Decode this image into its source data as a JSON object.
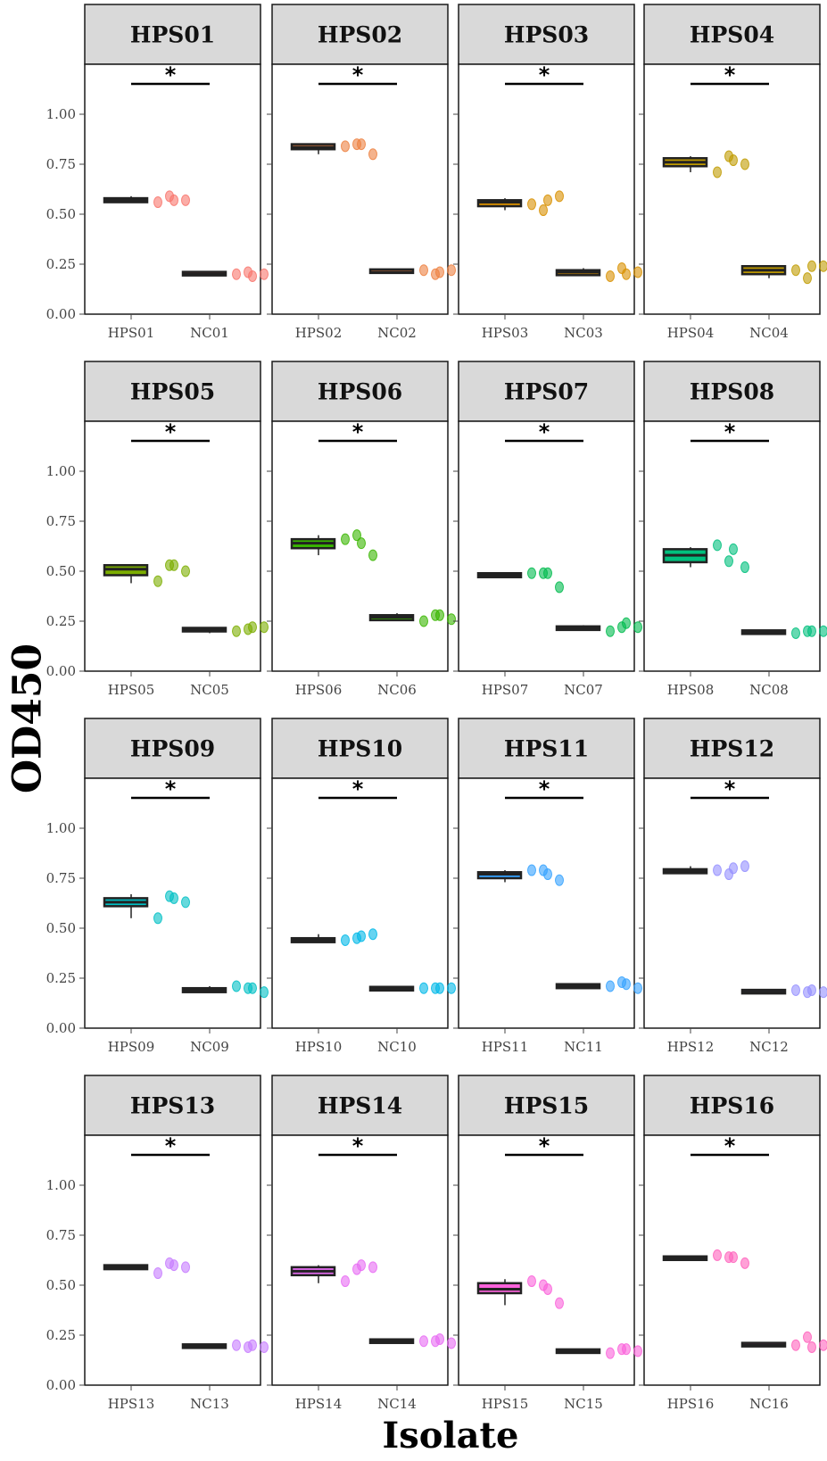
{
  "chart_data": {
    "type": "box",
    "xlabel": "Isolate",
    "ylabel": "OD450",
    "ylim": [
      0,
      1.25
    ],
    "y_ticks": [
      "0.00",
      "0.25",
      "0.50",
      "0.75",
      "1.00"
    ],
    "significance_label": "*",
    "layout": "4x4 facets",
    "panels": [
      {
        "title": "HPS01",
        "color": "#F8766D",
        "groups": [
          {
            "label": "HPS01",
            "median": 0.57,
            "q1": 0.56,
            "q3": 0.58,
            "min": 0.56,
            "max": 0.59,
            "points": [
              0.56,
              0.59,
              0.57,
              0.57
            ]
          },
          {
            "label": "NC01",
            "median": 0.2,
            "q1": 0.195,
            "q3": 0.21,
            "min": 0.19,
            "max": 0.21,
            "points": [
              0.2,
              0.21,
              0.19,
              0.2
            ]
          }
        ]
      },
      {
        "title": "HPS02",
        "color": "#ED8141",
        "groups": [
          {
            "label": "HPS02",
            "median": 0.835,
            "q1": 0.825,
            "q3": 0.85,
            "min": 0.8,
            "max": 0.85,
            "points": [
              0.84,
              0.85,
              0.85,
              0.8
            ]
          },
          {
            "label": "NC02",
            "median": 0.21,
            "q1": 0.21,
            "q3": 0.22,
            "min": 0.21,
            "max": 0.22,
            "points": [
              0.22,
              0.2,
              0.21,
              0.22
            ]
          }
        ]
      },
      {
        "title": "HPS03",
        "color": "#D89000",
        "groups": [
          {
            "label": "HPS03",
            "median": 0.56,
            "q1": 0.54,
            "q3": 0.57,
            "min": 0.52,
            "max": 0.58,
            "points": [
              0.55,
              0.52,
              0.57,
              0.59
            ]
          },
          {
            "label": "NC03",
            "median": 0.21,
            "q1": 0.195,
            "q3": 0.22,
            "min": 0.19,
            "max": 0.23,
            "points": [
              0.19,
              0.23,
              0.2,
              0.21
            ]
          }
        ]
      },
      {
        "title": "HPS04",
        "color": "#C09B00",
        "groups": [
          {
            "label": "HPS04",
            "median": 0.76,
            "q1": 0.74,
            "q3": 0.78,
            "min": 0.71,
            "max": 0.79,
            "points": [
              0.71,
              0.79,
              0.77,
              0.75
            ]
          },
          {
            "label": "NC04",
            "median": 0.22,
            "q1": 0.2,
            "q3": 0.24,
            "min": 0.18,
            "max": 0.245,
            "points": [
              0.22,
              0.18,
              0.24,
              0.24
            ]
          }
        ]
      },
      {
        "title": "HPS05",
        "color": "#7CAE00",
        "groups": [
          {
            "label": "HPS05",
            "median": 0.51,
            "q1": 0.48,
            "q3": 0.53,
            "min": 0.44,
            "max": 0.53,
            "points": [
              0.45,
              0.53,
              0.53,
              0.5
            ]
          },
          {
            "label": "NC05",
            "median": 0.21,
            "q1": 0.2,
            "q3": 0.215,
            "min": 0.19,
            "max": 0.22,
            "points": [
              0.2,
              0.21,
              0.22,
              0.22
            ]
          }
        ]
      },
      {
        "title": "HPS06",
        "color": "#39B600",
        "groups": [
          {
            "label": "HPS06",
            "median": 0.64,
            "q1": 0.615,
            "q3": 0.66,
            "min": 0.58,
            "max": 0.68,
            "points": [
              0.66,
              0.68,
              0.64,
              0.58
            ]
          },
          {
            "label": "NC06",
            "median": 0.27,
            "q1": 0.255,
            "q3": 0.28,
            "min": 0.25,
            "max": 0.29,
            "points": [
              0.25,
              0.28,
              0.28,
              0.26
            ]
          }
        ]
      },
      {
        "title": "HPS07",
        "color": "#00BB4E",
        "groups": [
          {
            "label": "HPS07",
            "median": 0.48,
            "q1": 0.47,
            "q3": 0.49,
            "min": 0.47,
            "max": 0.49,
            "points": [
              0.49,
              0.49,
              0.49,
              0.42
            ]
          },
          {
            "label": "NC07",
            "median": 0.215,
            "q1": 0.21,
            "q3": 0.22,
            "min": 0.21,
            "max": 0.23,
            "points": [
              0.2,
              0.22,
              0.24,
              0.22
            ]
          }
        ]
      },
      {
        "title": "HPS08",
        "color": "#00BF7D",
        "groups": [
          {
            "label": "HPS08",
            "median": 0.58,
            "q1": 0.545,
            "q3": 0.61,
            "min": 0.52,
            "max": 0.62,
            "points": [
              0.63,
              0.55,
              0.61,
              0.52
            ]
          },
          {
            "label": "NC08",
            "median": 0.195,
            "q1": 0.19,
            "q3": 0.2,
            "min": 0.19,
            "max": 0.2,
            "points": [
              0.19,
              0.2,
              0.2,
              0.2
            ]
          }
        ]
      },
      {
        "title": "HPS09",
        "color": "#00BFC4",
        "groups": [
          {
            "label": "HPS09",
            "median": 0.63,
            "q1": 0.61,
            "q3": 0.65,
            "min": 0.55,
            "max": 0.67,
            "points": [
              0.55,
              0.66,
              0.65,
              0.63
            ]
          },
          {
            "label": "NC09",
            "median": 0.19,
            "q1": 0.18,
            "q3": 0.2,
            "min": 0.18,
            "max": 0.21,
            "points": [
              0.21,
              0.2,
              0.2,
              0.18
            ]
          }
        ]
      },
      {
        "title": "HPS10",
        "color": "#00B8E7",
        "groups": [
          {
            "label": "HPS10",
            "median": 0.44,
            "q1": 0.43,
            "q3": 0.45,
            "min": 0.43,
            "max": 0.47,
            "points": [
              0.44,
              0.45,
              0.46,
              0.47
            ]
          },
          {
            "label": "NC10",
            "median": 0.2,
            "q1": 0.195,
            "q3": 0.2,
            "min": 0.195,
            "max": 0.2,
            "points": [
              0.2,
              0.2,
              0.2,
              0.2
            ]
          }
        ]
      },
      {
        "title": "HPS11",
        "color": "#35A2FF",
        "groups": [
          {
            "label": "HPS11",
            "median": 0.77,
            "q1": 0.75,
            "q3": 0.78,
            "min": 0.73,
            "max": 0.79,
            "points": [
              0.79,
              0.79,
              0.77,
              0.74
            ]
          },
          {
            "label": "NC11",
            "median": 0.21,
            "q1": 0.2,
            "q3": 0.22,
            "min": 0.2,
            "max": 0.225,
            "points": [
              0.21,
              0.23,
              0.22,
              0.2
            ]
          }
        ]
      },
      {
        "title": "HPS12",
        "color": "#9590FF",
        "groups": [
          {
            "label": "HPS12",
            "median": 0.785,
            "q1": 0.775,
            "q3": 0.795,
            "min": 0.775,
            "max": 0.81,
            "points": [
              0.79,
              0.77,
              0.8,
              0.81
            ]
          },
          {
            "label": "NC12",
            "median": 0.18,
            "q1": 0.18,
            "q3": 0.185,
            "min": 0.18,
            "max": 0.19,
            "points": [
              0.19,
              0.18,
              0.19,
              0.18
            ]
          }
        ]
      },
      {
        "title": "HPS13",
        "color": "#C77CFF",
        "groups": [
          {
            "label": "HPS13",
            "median": 0.59,
            "q1": 0.58,
            "q3": 0.6,
            "min": 0.58,
            "max": 0.6,
            "points": [
              0.56,
              0.61,
              0.6,
              0.59
            ]
          },
          {
            "label": "NC13",
            "median": 0.195,
            "q1": 0.19,
            "q3": 0.2,
            "min": 0.19,
            "max": 0.2,
            "points": [
              0.2,
              0.19,
              0.2,
              0.19
            ]
          }
        ]
      },
      {
        "title": "HPS14",
        "color": "#E76BF3",
        "groups": [
          {
            "label": "HPS14",
            "median": 0.57,
            "q1": 0.55,
            "q3": 0.59,
            "min": 0.51,
            "max": 0.6,
            "points": [
              0.52,
              0.58,
              0.6,
              0.59
            ]
          },
          {
            "label": "NC14",
            "median": 0.22,
            "q1": 0.215,
            "q3": 0.225,
            "min": 0.215,
            "max": 0.225,
            "points": [
              0.22,
              0.22,
              0.23,
              0.21
            ]
          }
        ]
      },
      {
        "title": "HPS15",
        "color": "#FA62DB",
        "groups": [
          {
            "label": "HPS15",
            "median": 0.48,
            "q1": 0.46,
            "q3": 0.51,
            "min": 0.4,
            "max": 0.53,
            "points": [
              0.52,
              0.5,
              0.48,
              0.41
            ]
          },
          {
            "label": "NC15",
            "median": 0.17,
            "q1": 0.165,
            "q3": 0.175,
            "min": 0.165,
            "max": 0.18,
            "points": [
              0.16,
              0.18,
              0.18,
              0.17
            ]
          }
        ]
      },
      {
        "title": "HPS16",
        "color": "#FF62BC",
        "groups": [
          {
            "label": "HPS16",
            "median": 0.635,
            "q1": 0.63,
            "q3": 0.64,
            "min": 0.63,
            "max": 0.645,
            "points": [
              0.65,
              0.64,
              0.64,
              0.61
            ]
          },
          {
            "label": "NC16",
            "median": 0.2,
            "q1": 0.195,
            "q3": 0.21,
            "min": 0.19,
            "max": 0.21,
            "points": [
              0.2,
              0.24,
              0.19,
              0.2
            ]
          }
        ]
      }
    ]
  }
}
